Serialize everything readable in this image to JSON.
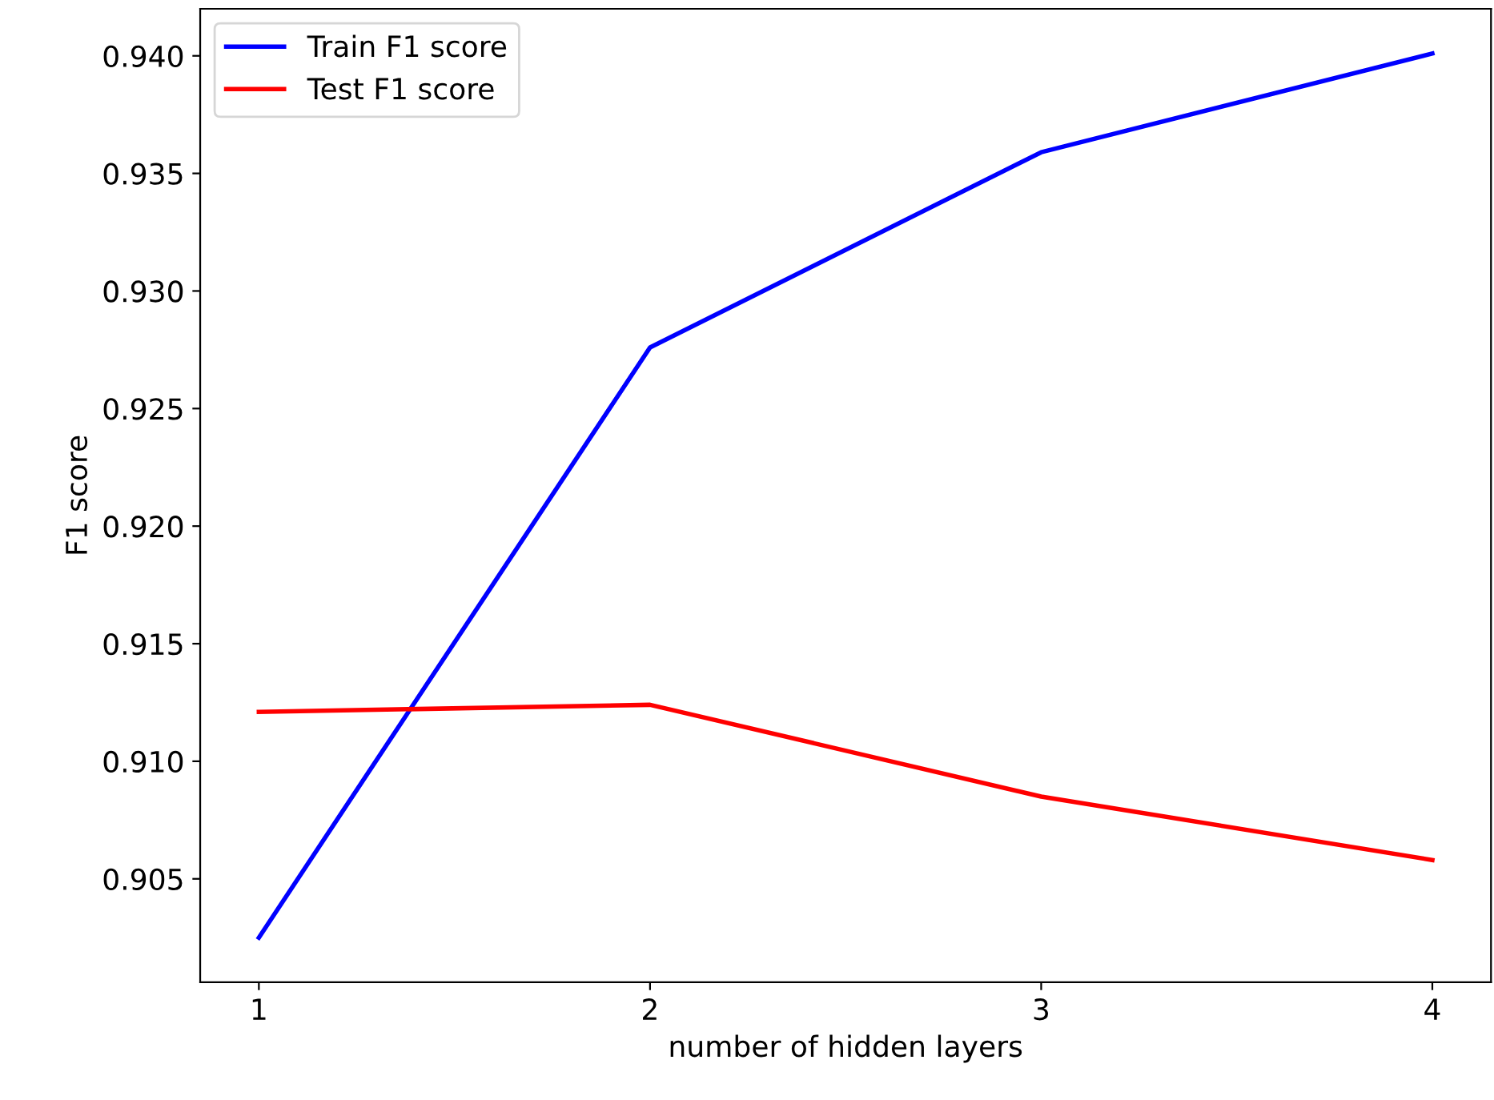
{
  "chart_data": {
    "type": "line",
    "xlabel": "number of hidden layers",
    "ylabel": "F1 score",
    "x": [
      1,
      2,
      3,
      4
    ],
    "series": [
      {
        "name": "Train F1 score",
        "color": "#0000ff",
        "values": [
          0.9025,
          0.9276,
          0.9359,
          0.9401
        ]
      },
      {
        "name": "Test F1 score",
        "color": "#ff0000",
        "values": [
          0.9121,
          0.9124,
          0.9085,
          0.9058
        ]
      }
    ],
    "xlim": [
      0.85,
      4.15
    ],
    "xticks": [
      1,
      2,
      3,
      4
    ],
    "ylim": [
      0.9006,
      0.942
    ],
    "yticks": [
      {
        "value": 0.905,
        "label": "0.905"
      },
      {
        "value": 0.91,
        "label": "0.910"
      },
      {
        "value": 0.915,
        "label": "0.915"
      },
      {
        "value": 0.92,
        "label": "0.920"
      },
      {
        "value": 0.925,
        "label": "0.925"
      },
      {
        "value": 0.93,
        "label": "0.930"
      },
      {
        "value": 0.935,
        "label": "0.935"
      },
      {
        "value": 0.94,
        "label": "0.940"
      }
    ],
    "grid": false,
    "legend": "top left"
  }
}
